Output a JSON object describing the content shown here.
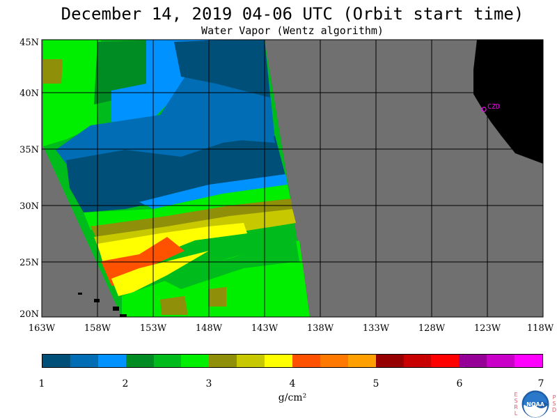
{
  "title": "December 14, 2019  04-06 UTC  (Orbit start time)",
  "subtitle": "Water Vapor (Wentz algorithm)",
  "lat_labels": [
    "45N",
    "40N",
    "35N",
    "30N",
    "25N",
    "20N"
  ],
  "lon_labels": [
    "163W",
    "158W",
    "153W",
    "148W",
    "143W",
    "138W",
    "133W",
    "128W",
    "123W",
    "118W"
  ],
  "station_label": "CZD",
  "colorbar": {
    "colors": [
      "#004f78",
      "#006db4",
      "#0092ff",
      "#008c23",
      "#00bb1c",
      "#00ee00",
      "#8f8f0a",
      "#c8c800",
      "#ffff00",
      "#ff5200",
      "#ff7800",
      "#ffa000",
      "#960000",
      "#c80000",
      "#ff0000",
      "#960096",
      "#c800c8",
      "#ff00ff"
    ],
    "ticks": [
      "1",
      "2",
      "3",
      "4",
      "5",
      "6",
      "7"
    ]
  },
  "units": "g/cm²",
  "logo": {
    "left_letters": [
      "E",
      "S",
      "R",
      "L"
    ],
    "center": "NOAA",
    "right_letters": [
      "P",
      "S",
      "D"
    ]
  }
}
